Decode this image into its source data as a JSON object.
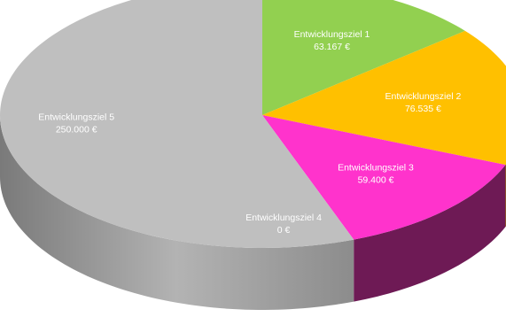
{
  "chart_data": {
    "type": "pie",
    "variant": "3d",
    "title": "",
    "series": [
      {
        "values": [
          63167,
          76535,
          59400,
          0,
          250000
        ],
        "value_labels": [
          "63.167 €",
          "76.535 €",
          "59.400 €",
          "0 €",
          "250.000 €"
        ],
        "categories": [
          "Entwicklungsziel 1",
          "Entwicklungsziel 2",
          "Entwicklungsziel 3",
          "Entwicklungsziel 4",
          "Entwicklungsziel 5"
        ],
        "colors": [
          "#92d050",
          "#ffc000",
          "#ff33cc",
          "#d9d9d9",
          "#bfbfbf"
        ],
        "side_colors": [
          "#5a8a2a",
          "#a07800",
          "#6e1a55",
          "#8a8a8a",
          "#8f8f8f"
        ]
      }
    ],
    "label_color": "#ffffff",
    "legend": "none"
  }
}
